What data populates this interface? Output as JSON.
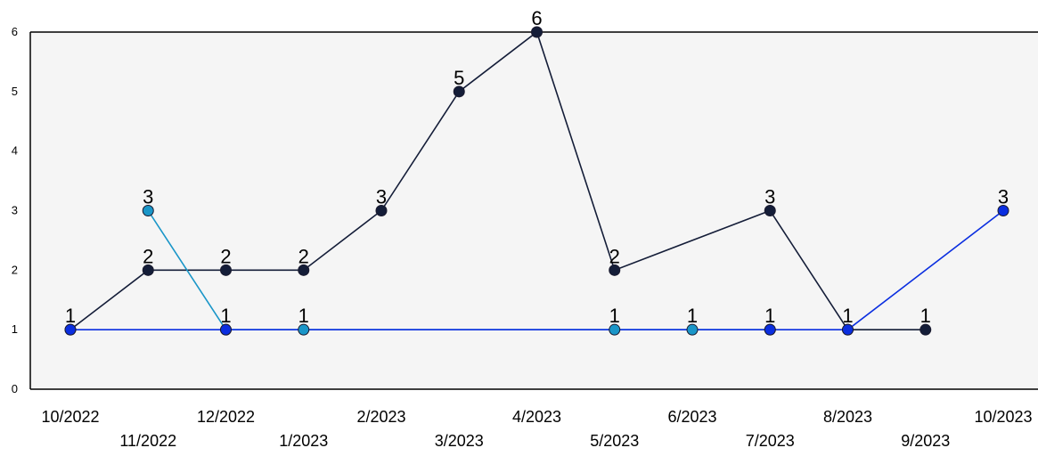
{
  "chart_data": {
    "type": "line",
    "title": "",
    "xlabel": "",
    "ylabel": "",
    "categories": [
      "10/2022",
      "11/2022",
      "12/2022",
      "1/2023",
      "2/2023",
      "3/2023",
      "4/2023",
      "5/2023",
      "6/2023",
      "7/2023",
      "8/2023",
      "9/2023",
      "10/2023"
    ],
    "y_ticks": [
      "0",
      "1",
      "2",
      "3",
      "4",
      "5",
      "6"
    ],
    "ylim": [
      0,
      6
    ],
    "grid": false,
    "legend": "none",
    "plot_background": "#f5f5f5",
    "series": [
      {
        "color": "#141d38",
        "values": [
          1,
          2,
          2,
          2,
          3,
          5,
          6,
          2,
          null,
          3,
          1,
          1,
          null
        ]
      },
      {
        "color": "#1a96c8",
        "values": [
          null,
          3,
          1,
          1,
          null,
          null,
          null,
          1,
          1,
          1,
          null,
          null,
          null
        ]
      },
      {
        "color": "#0a2ee0",
        "values": [
          1,
          null,
          1,
          null,
          null,
          null,
          null,
          null,
          null,
          1,
          1,
          null,
          3
        ]
      }
    ]
  }
}
